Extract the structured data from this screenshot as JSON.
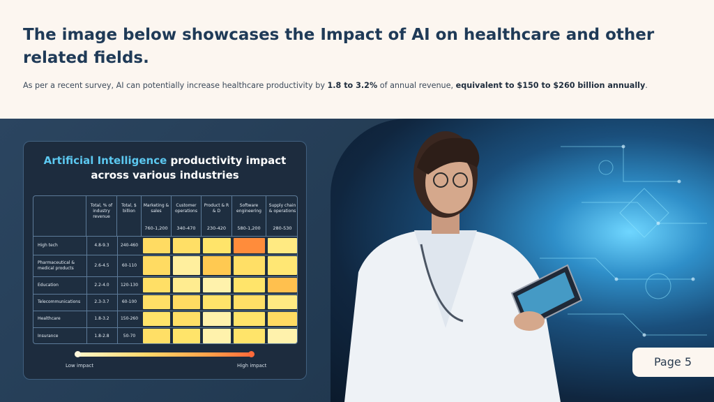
{
  "header": {
    "title": "The image below showcases the Impact of AI on healthcare and other related fields.",
    "subtitle_pre": "As per a recent survey, AI can potentially increase healthcare productivity by ",
    "subtitle_b1": "1.8 to 3.2%",
    "subtitle_mid": " of annual revenue, ",
    "subtitle_b2": "equivalent to $150 to $260 billion annually",
    "subtitle_post": "."
  },
  "panel": {
    "title_highlight": "Artificial Intelligence",
    "title_rest": " productivity impact",
    "title_line2": "across various industries",
    "legend_low": "Low impact",
    "legend_high": "High impact"
  },
  "chart_data": {
    "type": "heatmap",
    "title": "Artificial Intelligence productivity impact across various industries",
    "columns": [
      {
        "label": "Total, % of industry revenue",
        "range": ""
      },
      {
        "label": "Total, $ billion",
        "range": ""
      },
      {
        "label": "Marketing & sales",
        "range": "760-1,200"
      },
      {
        "label": "Customer operations",
        "range": "340-470"
      },
      {
        "label": "Product & R & D",
        "range": "230-420"
      },
      {
        "label": "Software engineering",
        "range": "580-1,200"
      },
      {
        "label": "Supply chain & operations",
        "range": "280-530"
      }
    ],
    "rows": [
      {
        "industry": "High tech",
        "pct": "4.8-9.3",
        "bn": "240-460",
        "impact": [
          0.45,
          0.4,
          0.35,
          0.95,
          0.25
        ]
      },
      {
        "industry": "Pharmaceutical & medical products",
        "pct": "2.6-4.5",
        "bn": "60-110",
        "impact": [
          0.45,
          0.15,
          0.65,
          0.4,
          0.3
        ]
      },
      {
        "industry": "Education",
        "pct": "2.2-4.0",
        "bn": "120-130",
        "impact": [
          0.4,
          0.2,
          0.1,
          0.35,
          0.7
        ]
      },
      {
        "industry": "Telecommunications",
        "pct": "2.3-3.7",
        "bn": "60-100",
        "impact": [
          0.4,
          0.45,
          0.35,
          0.4,
          0.25
        ]
      },
      {
        "industry": "Healthcare",
        "pct": "1.8-3.2",
        "bn": "150-260",
        "impact": [
          0.35,
          0.4,
          0.1,
          0.35,
          0.45
        ]
      },
      {
        "industry": "Insurance",
        "pct": "1.8-2.8",
        "bn": "50-70",
        "impact": [
          0.4,
          0.35,
          0.1,
          0.35,
          0.1
        ]
      }
    ],
    "legend": {
      "low": "Low impact",
      "high": "High impact"
    }
  },
  "footer": {
    "page_label": "Page 5"
  }
}
